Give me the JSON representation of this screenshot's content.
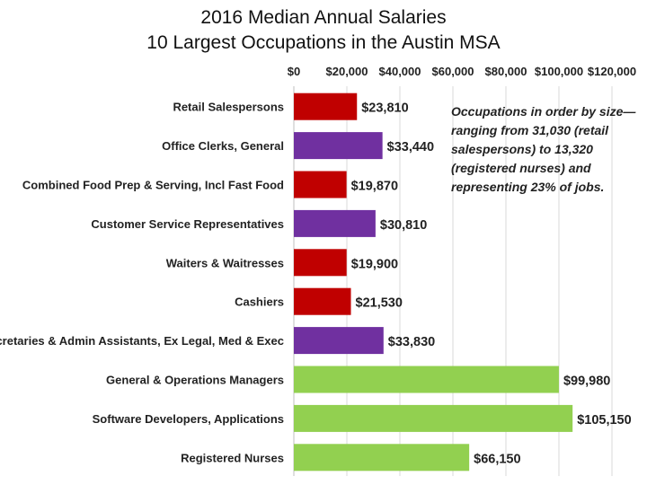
{
  "chart_data": {
    "type": "bar",
    "orientation": "horizontal",
    "title": "2016 Median Annual Salaries",
    "subtitle": "10 Largest Occupations in the Austin MSA",
    "xlabel": "",
    "ylabel": "",
    "xlim": [
      0,
      120000
    ],
    "x_ticks": [
      "$0",
      "$20,000",
      "$40,000",
      "$60,000",
      "$80,000",
      "$100,000",
      "$120,000"
    ],
    "x_tick_values": [
      0,
      20000,
      40000,
      60000,
      80000,
      100000,
      120000
    ],
    "axis_position": "top",
    "grid": true,
    "categories": [
      "Retail Salespersons",
      "Office Clerks, General",
      "Combined Food Prep & Serving, Incl Fast Food",
      "Customer Service Representatives",
      "Waiters & Waitresses",
      "Cashiers",
      "Secretaries & Admin Assistants, Ex Legal, Med & Exec",
      "General & Operations Managers",
      "Software Developers, Applications",
      "Registered Nurses"
    ],
    "values": [
      23810,
      33440,
      19870,
      30810,
      19900,
      21530,
      33830,
      99980,
      105150,
      66150
    ],
    "value_labels": [
      "$23,810",
      "$33,440",
      "$19,870",
      "$30,810",
      "$19,900",
      "$21,530",
      "$33,830",
      "$99,980",
      "$105,150",
      "$66,150"
    ],
    "bar_colors": [
      "#c00000",
      "#7030a0",
      "#c00000",
      "#7030a0",
      "#c00000",
      "#c00000",
      "#7030a0",
      "#92d050",
      "#92d050",
      "#92d050"
    ],
    "annotation": "Occupations in order by size—ranging from 31,030 (retail salespersons) to 13,320 (registered nurses) and representing 23% of jobs."
  }
}
